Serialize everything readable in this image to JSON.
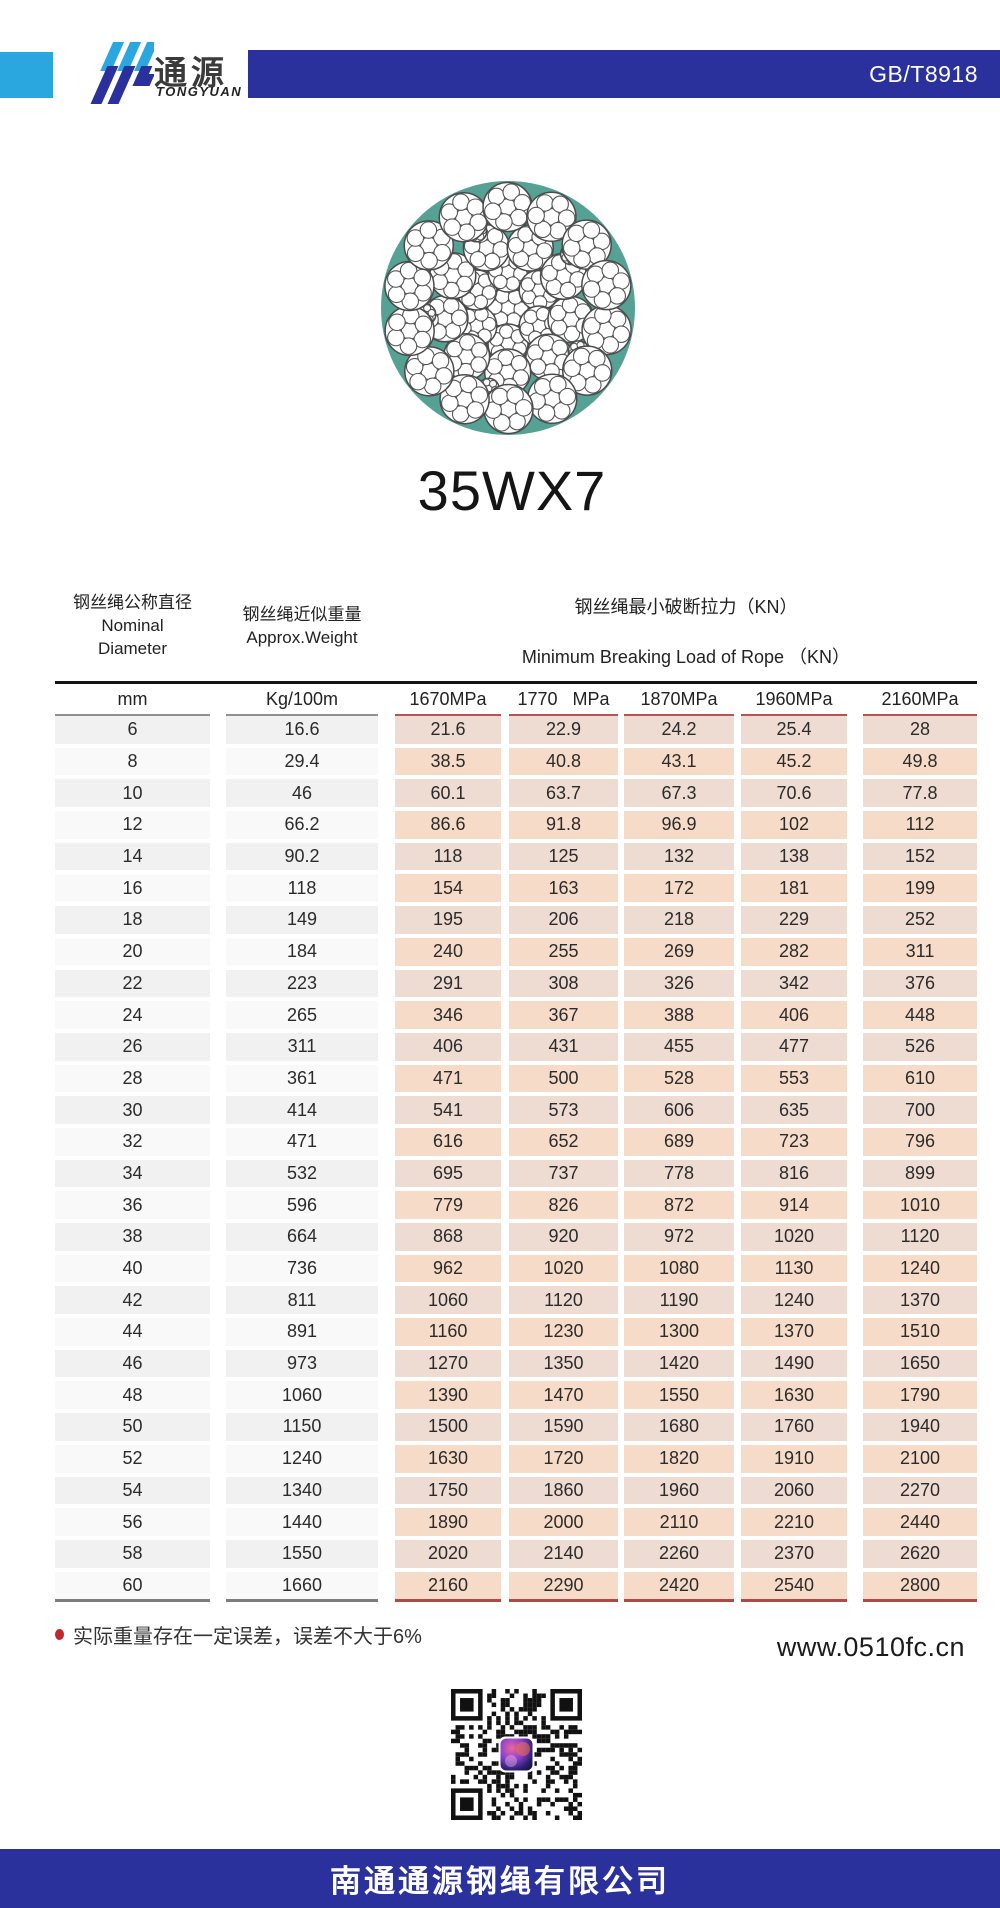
{
  "header": {
    "brand_cn": "通源",
    "brand_en": "TONGYUAN",
    "standard": "GB/T8918"
  },
  "product": {
    "title": "35WX7",
    "figure": "rope-cross-section-35-strands-7-wires"
  },
  "table": {
    "col1_header_cn": "钢丝绳公称直径",
    "col1_header_en_line1": "Nominal",
    "col1_header_en_line2": "Diameter",
    "col2_header_cn": "钢丝绳近似重量",
    "col2_header_en": "Approx.Weight",
    "mbl_header_cn": "钢丝绳最小破断拉力（KN）",
    "mbl_header_en": "Minimum Breaking Load of Rope （KN）",
    "units": [
      "mm",
      "Kg/100m",
      "1670MPa",
      "1770   MPa",
      "1870MPa",
      "1960MPa",
      "2160MPa"
    ],
    "rows": [
      [
        "6",
        "16.6",
        "21.6",
        "22.9",
        "24.2",
        "25.4",
        "28"
      ],
      [
        "8",
        "29.4",
        "38.5",
        "40.8",
        "43.1",
        "45.2",
        "49.8"
      ],
      [
        "10",
        "46",
        "60.1",
        "63.7",
        "67.3",
        "70.6",
        "77.8"
      ],
      [
        "12",
        "66.2",
        "86.6",
        "91.8",
        "96.9",
        "102",
        "112"
      ],
      [
        "14",
        "90.2",
        "118",
        "125",
        "132",
        "138",
        "152"
      ],
      [
        "16",
        "118",
        "154",
        "163",
        "172",
        "181",
        "199"
      ],
      [
        "18",
        "149",
        "195",
        "206",
        "218",
        "229",
        "252"
      ],
      [
        "20",
        "184",
        "240",
        "255",
        "269",
        "282",
        "311"
      ],
      [
        "22",
        "223",
        "291",
        "308",
        "326",
        "342",
        "376"
      ],
      [
        "24",
        "265",
        "346",
        "367",
        "388",
        "406",
        "448"
      ],
      [
        "26",
        "311",
        "406",
        "431",
        "455",
        "477",
        "526"
      ],
      [
        "28",
        "361",
        "471",
        "500",
        "528",
        "553",
        "610"
      ],
      [
        "30",
        "414",
        "541",
        "573",
        "606",
        "635",
        "700"
      ],
      [
        "32",
        "471",
        "616",
        "652",
        "689",
        "723",
        "796"
      ],
      [
        "34",
        "532",
        "695",
        "737",
        "778",
        "816",
        "899"
      ],
      [
        "36",
        "596",
        "779",
        "826",
        "872",
        "914",
        "1010"
      ],
      [
        "38",
        "664",
        "868",
        "920",
        "972",
        "1020",
        "1120"
      ],
      [
        "40",
        "736",
        "962",
        "1020",
        "1080",
        "1130",
        "1240"
      ],
      [
        "42",
        "811",
        "1060",
        "1120",
        "1190",
        "1240",
        "1370"
      ],
      [
        "44",
        "891",
        "1160",
        "1230",
        "1300",
        "1370",
        "1510"
      ],
      [
        "46",
        "973",
        "1270",
        "1350",
        "1420",
        "1490",
        "1650"
      ],
      [
        "48",
        "1060",
        "1390",
        "1470",
        "1550",
        "1630",
        "1790"
      ],
      [
        "50",
        "1150",
        "1500",
        "1590",
        "1680",
        "1760",
        "1940"
      ],
      [
        "52",
        "1240",
        "1630",
        "1720",
        "1820",
        "1910",
        "2100"
      ],
      [
        "54",
        "1340",
        "1750",
        "1860",
        "1960",
        "2060",
        "2270"
      ],
      [
        "56",
        "1440",
        "1890",
        "2000",
        "2110",
        "2210",
        "2440"
      ],
      [
        "58",
        "1550",
        "2020",
        "2140",
        "2260",
        "2370",
        "2620"
      ],
      [
        "60",
        "1660",
        "2160",
        "2290",
        "2420",
        "2540",
        "2800"
      ]
    ]
  },
  "footer": {
    "note": "实际重量存在一定误差，误差不大于6%",
    "website": "www.0510fc.cn",
    "company": "南通通源钢绳有限公司"
  },
  "colors": {
    "brand_blue": "#2a309c",
    "light_blue": "#2ba7e0",
    "teal": "#55a294",
    "accent_red": "#b6544f",
    "note_red": "#c0282d",
    "cell_peach_warm": "#f6dcc8",
    "cell_peach_dusty": "#eedbd2"
  }
}
